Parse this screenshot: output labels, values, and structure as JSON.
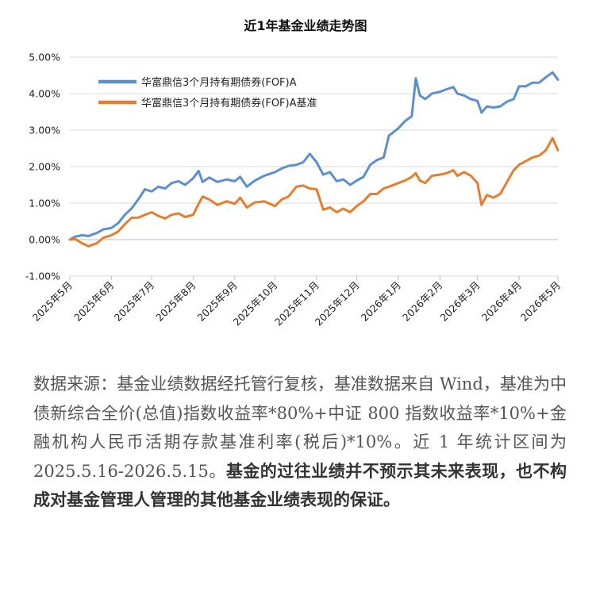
{
  "chart_data": {
    "type": "line",
    "title": "近1年基金业绩走势图",
    "xlabel": "",
    "ylabel": "",
    "ylim": [
      -0.01,
      0.05
    ],
    "yticks": [
      -0.01,
      0,
      0.01,
      0.02,
      0.03,
      0.04,
      0.05
    ],
    "ytick_labels": [
      "-1.00%",
      "0.00%",
      "1.00%",
      "2.00%",
      "3.00%",
      "4.00%",
      "5.00%"
    ],
    "xlim": [
      "2025-05-16",
      "2026-05-15"
    ],
    "xticks": [
      "2025-05-16",
      "2025-06-16",
      "2025-07-16",
      "2025-08-16",
      "2025-09-16",
      "2025-10-16",
      "2025-11-16",
      "2025-12-16",
      "2026-01-16",
      "2026-02-16",
      "2026-03-16",
      "2026-04-16",
      "2026-05-15"
    ],
    "xtick_labels": [
      "2025年5月",
      "2025年6月",
      "2025年7月",
      "2025年8月",
      "2025年9月",
      "2025年10月",
      "2025年11月",
      "2025年12月",
      "2026年1月",
      "2026年2月",
      "2026年3月",
      "2026年4月",
      "2026年5月"
    ],
    "grid": "horizontal",
    "legend_position": "top-left",
    "series": [
      {
        "name": "华富鼎信3个月持有期债券(FOF)A",
        "color": "#5B8FD0",
        "points": [
          [
            "2025-05-16",
            0.0
          ],
          [
            "2025-05-20",
            0.0008
          ],
          [
            "2025-05-25",
            0.0012
          ],
          [
            "2025-05-30",
            0.001
          ],
          [
            "2025-06-05",
            0.0018
          ],
          [
            "2025-06-10",
            0.0028
          ],
          [
            "2025-06-16",
            0.0032
          ],
          [
            "2025-06-21",
            0.0045
          ],
          [
            "2025-06-26",
            0.0068
          ],
          [
            "2025-07-01",
            0.0085
          ],
          [
            "2025-07-06",
            0.011
          ],
          [
            "2025-07-11",
            0.0138
          ],
          [
            "2025-07-16",
            0.0132
          ],
          [
            "2025-07-21",
            0.0145
          ],
          [
            "2025-07-26",
            0.014
          ],
          [
            "2025-07-31",
            0.0155
          ],
          [
            "2025-08-05",
            0.016
          ],
          [
            "2025-08-10",
            0.015
          ],
          [
            "2025-08-16",
            0.0168
          ],
          [
            "2025-08-20",
            0.0188
          ],
          [
            "2025-08-23",
            0.0158
          ],
          [
            "2025-08-28",
            0.017
          ],
          [
            "2025-09-03",
            0.0158
          ],
          [
            "2025-09-10",
            0.0165
          ],
          [
            "2025-09-16",
            0.016
          ],
          [
            "2025-09-20",
            0.0172
          ],
          [
            "2025-09-25",
            0.0145
          ],
          [
            "2025-10-01",
            0.0162
          ],
          [
            "2025-10-08",
            0.0175
          ],
          [
            "2025-10-16",
            0.0185
          ],
          [
            "2025-10-21",
            0.0195
          ],
          [
            "2025-10-26",
            0.0202
          ],
          [
            "2025-11-01",
            0.0205
          ],
          [
            "2025-11-06",
            0.0212
          ],
          [
            "2025-11-11",
            0.0235
          ],
          [
            "2025-11-16",
            0.0212
          ],
          [
            "2025-11-21",
            0.0178
          ],
          [
            "2025-11-26",
            0.0185
          ],
          [
            "2025-12-01",
            0.016
          ],
          [
            "2025-12-06",
            0.0165
          ],
          [
            "2025-12-11",
            0.015
          ],
          [
            "2025-12-16",
            0.0162
          ],
          [
            "2025-12-21",
            0.0172
          ],
          [
            "2025-12-26",
            0.0205
          ],
          [
            "2025-12-31",
            0.0218
          ],
          [
            "2026-01-05",
            0.0225
          ],
          [
            "2026-01-09",
            0.0285
          ],
          [
            "2026-01-16",
            0.0305
          ],
          [
            "2026-01-21",
            0.0325
          ],
          [
            "2026-01-26",
            0.0338
          ],
          [
            "2026-01-29",
            0.0442
          ],
          [
            "2026-02-01",
            0.0395
          ],
          [
            "2026-02-05",
            0.0385
          ],
          [
            "2026-02-10",
            0.04
          ],
          [
            "2026-02-16",
            0.0405
          ],
          [
            "2026-02-21",
            0.0412
          ],
          [
            "2026-02-26",
            0.0418
          ],
          [
            "2026-03-01",
            0.04
          ],
          [
            "2026-03-06",
            0.0395
          ],
          [
            "2026-03-11",
            0.0385
          ],
          [
            "2026-03-16",
            0.038
          ],
          [
            "2026-03-19",
            0.0348
          ],
          [
            "2026-03-23",
            0.0365
          ],
          [
            "2026-03-28",
            0.0362
          ],
          [
            "2026-04-02",
            0.0365
          ],
          [
            "2026-04-07",
            0.0378
          ],
          [
            "2026-04-12",
            0.0385
          ],
          [
            "2026-04-16",
            0.042
          ],
          [
            "2026-04-21",
            0.042
          ],
          [
            "2026-04-26",
            0.043
          ],
          [
            "2026-05-01",
            0.043
          ],
          [
            "2026-05-06",
            0.0445
          ],
          [
            "2026-05-11",
            0.0458
          ],
          [
            "2026-05-15",
            0.0438
          ]
        ]
      },
      {
        "name": "华富鼎信3个月持有期债券(FOF)A基准",
        "color": "#E87D2E",
        "points": [
          [
            "2025-05-16",
            0.0
          ],
          [
            "2025-05-20",
            0.0002
          ],
          [
            "2025-05-25",
            -0.001
          ],
          [
            "2025-05-30",
            -0.0018
          ],
          [
            "2025-06-05",
            -0.001
          ],
          [
            "2025-06-10",
            0.0005
          ],
          [
            "2025-06-16",
            0.0012
          ],
          [
            "2025-06-21",
            0.0022
          ],
          [
            "2025-06-26",
            0.0042
          ],
          [
            "2025-07-01",
            0.006
          ],
          [
            "2025-07-06",
            0.006
          ],
          [
            "2025-07-11",
            0.0068
          ],
          [
            "2025-07-16",
            0.0075
          ],
          [
            "2025-07-21",
            0.0065
          ],
          [
            "2025-07-26",
            0.0058
          ],
          [
            "2025-07-31",
            0.0068
          ],
          [
            "2025-08-05",
            0.0072
          ],
          [
            "2025-08-10",
            0.0062
          ],
          [
            "2025-08-16",
            0.0068
          ],
          [
            "2025-08-20",
            0.0098
          ],
          [
            "2025-08-23",
            0.0118
          ],
          [
            "2025-08-28",
            0.011
          ],
          [
            "2025-09-03",
            0.0095
          ],
          [
            "2025-09-10",
            0.0105
          ],
          [
            "2025-09-16",
            0.0098
          ],
          [
            "2025-09-20",
            0.0115
          ],
          [
            "2025-09-25",
            0.0088
          ],
          [
            "2025-10-01",
            0.0102
          ],
          [
            "2025-10-08",
            0.0105
          ],
          [
            "2025-10-16",
            0.0092
          ],
          [
            "2025-10-21",
            0.011
          ],
          [
            "2025-10-26",
            0.0118
          ],
          [
            "2025-11-01",
            0.0145
          ],
          [
            "2025-11-06",
            0.0148
          ],
          [
            "2025-11-11",
            0.014
          ],
          [
            "2025-11-16",
            0.0138
          ],
          [
            "2025-11-21",
            0.0082
          ],
          [
            "2025-11-26",
            0.0088
          ],
          [
            "2025-12-01",
            0.0075
          ],
          [
            "2025-12-06",
            0.0085
          ],
          [
            "2025-12-11",
            0.0075
          ],
          [
            "2025-12-16",
            0.0092
          ],
          [
            "2025-12-21",
            0.0105
          ],
          [
            "2025-12-26",
            0.0125
          ],
          [
            "2025-12-31",
            0.0125
          ],
          [
            "2026-01-05",
            0.014
          ],
          [
            "2026-01-09",
            0.0145
          ],
          [
            "2026-01-16",
            0.0155
          ],
          [
            "2026-01-21",
            0.0162
          ],
          [
            "2026-01-26",
            0.0172
          ],
          [
            "2026-01-29",
            0.0182
          ],
          [
            "2026-02-01",
            0.0162
          ],
          [
            "2026-02-05",
            0.0155
          ],
          [
            "2026-02-10",
            0.0175
          ],
          [
            "2026-02-16",
            0.0178
          ],
          [
            "2026-02-21",
            0.0182
          ],
          [
            "2026-02-26",
            0.019
          ],
          [
            "2026-03-01",
            0.0175
          ],
          [
            "2026-03-06",
            0.0185
          ],
          [
            "2026-03-11",
            0.0175
          ],
          [
            "2026-03-16",
            0.0155
          ],
          [
            "2026-03-19",
            0.0095
          ],
          [
            "2026-03-23",
            0.0122
          ],
          [
            "2026-03-28",
            0.0115
          ],
          [
            "2026-04-02",
            0.0125
          ],
          [
            "2026-04-07",
            0.0158
          ],
          [
            "2026-04-12",
            0.019
          ],
          [
            "2026-04-16",
            0.0205
          ],
          [
            "2026-04-21",
            0.0215
          ],
          [
            "2026-04-26",
            0.0225
          ],
          [
            "2026-05-01",
            0.023
          ],
          [
            "2026-05-06",
            0.0245
          ],
          [
            "2026-05-11",
            0.0278
          ],
          [
            "2026-05-15",
            0.0245
          ]
        ]
      }
    ]
  },
  "note": {
    "text": "数据来源：基金业绩数据经托管行复核，基准数据来自 Wind，基准为中债新综合全价(总值)指数收益率*80%+中证 800 指数收益率*10%+金融机构人民币活期存款基准利率(税后)*10%。近 1 年统计区间为 2025.5.16-2026.5.15。",
    "bold_text": "基金的过往业绩并不预示其未来表现，也不构成对基金管理人管理的其他基金业绩表现的保证。"
  }
}
